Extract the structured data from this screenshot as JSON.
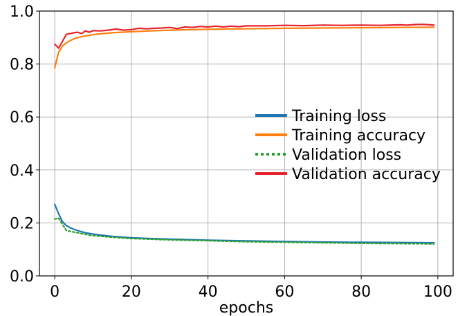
{
  "chart_data": {
    "type": "line",
    "title": "",
    "xlabel": "epochs",
    "ylabel": "",
    "xlim": [
      -4,
      104
    ],
    "ylim": [
      0,
      1.0
    ],
    "xticks": [
      "0",
      "20",
      "40",
      "60",
      "80",
      "100"
    ],
    "yticks": [
      "0.0",
      "0.2",
      "0.4",
      "0.6",
      "0.8",
      "1.0"
    ],
    "grid": true,
    "legend_position": "center-right",
    "series": [
      {
        "name": "Training loss",
        "color": "#1f77b4",
        "dash": "solid",
        "x": [
          0,
          1,
          2,
          3,
          4,
          5,
          6,
          8,
          10,
          12,
          15,
          20,
          25,
          30,
          40,
          50,
          60,
          70,
          80,
          90,
          99
        ],
        "y": [
          0.27,
          0.235,
          0.205,
          0.19,
          0.182,
          0.176,
          0.171,
          0.163,
          0.158,
          0.154,
          0.149,
          0.144,
          0.141,
          0.139,
          0.135,
          0.132,
          0.13,
          0.128,
          0.127,
          0.126,
          0.125
        ]
      },
      {
        "name": "Training accuracy",
        "color": "#ff7f0e",
        "dash": "solid",
        "x": [
          0,
          1,
          2,
          3,
          4,
          5,
          6,
          8,
          10,
          12,
          15,
          20,
          25,
          30,
          40,
          50,
          60,
          70,
          80,
          90,
          99
        ],
        "y": [
          0.785,
          0.845,
          0.868,
          0.88,
          0.888,
          0.895,
          0.9,
          0.906,
          0.911,
          0.914,
          0.918,
          0.922,
          0.925,
          0.928,
          0.931,
          0.933,
          0.935,
          0.936,
          0.937,
          0.938,
          0.939
        ]
      },
      {
        "name": "Validation loss",
        "color": "#2ca02c",
        "dash": "dotted",
        "x": [
          0,
          1,
          2,
          3,
          4,
          6,
          8,
          10,
          15,
          20,
          30,
          40,
          50,
          60,
          70,
          80,
          90,
          99
        ],
        "y": [
          0.215,
          0.218,
          0.195,
          0.172,
          0.168,
          0.163,
          0.157,
          0.152,
          0.146,
          0.141,
          0.136,
          0.133,
          0.129,
          0.127,
          0.125,
          0.123,
          0.122,
          0.121
        ]
      },
      {
        "name": "Validation accuracy",
        "color": "#e8212b",
        "dash": "solid",
        "x": [
          0,
          1,
          2,
          3,
          4,
          5,
          6,
          7,
          8,
          9,
          10,
          12,
          14,
          16,
          18,
          20,
          22,
          24,
          26,
          28,
          30,
          32,
          34,
          36,
          38,
          40,
          42,
          44,
          46,
          48,
          50,
          55,
          60,
          65,
          70,
          75,
          80,
          85,
          90,
          92,
          94,
          96,
          98,
          99
        ],
        "y": [
          0.875,
          0.86,
          0.885,
          0.912,
          0.915,
          0.918,
          0.92,
          0.915,
          0.925,
          0.92,
          0.926,
          0.925,
          0.928,
          0.932,
          0.928,
          0.93,
          0.935,
          0.933,
          0.935,
          0.936,
          0.938,
          0.934,
          0.94,
          0.938,
          0.942,
          0.94,
          0.943,
          0.94,
          0.943,
          0.941,
          0.944,
          0.944,
          0.946,
          0.945,
          0.947,
          0.946,
          0.947,
          0.946,
          0.948,
          0.947,
          0.949,
          0.95,
          0.948,
          0.947
        ]
      }
    ]
  }
}
